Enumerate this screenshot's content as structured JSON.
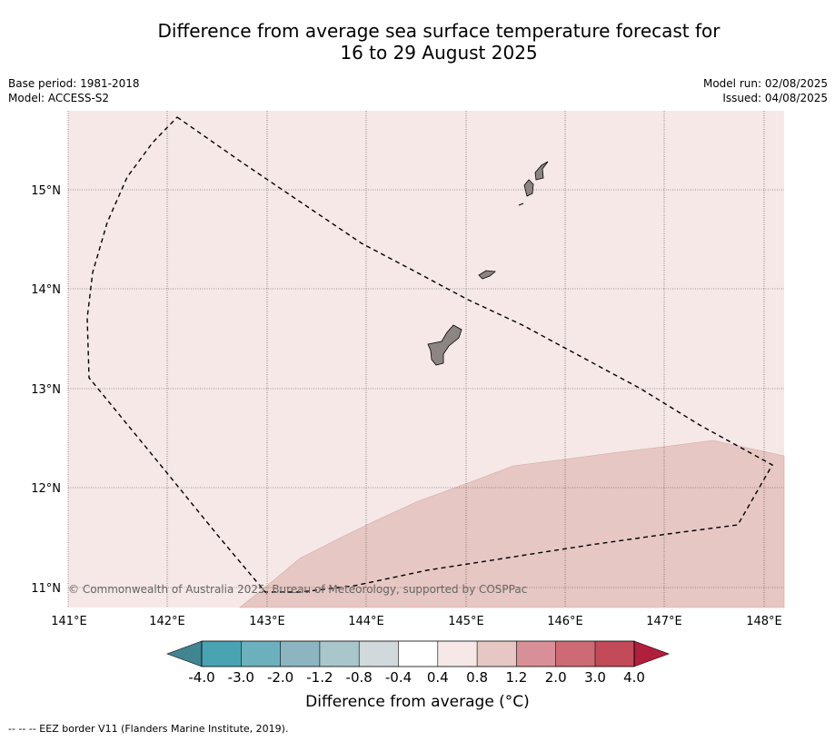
{
  "title": {
    "line1": "Difference from average sea surface temperature forecast for",
    "line2": "16 to 29 August 2025"
  },
  "meta": {
    "base_period": "Base period: 1981-2018",
    "model": "Model: ACCESS-S2",
    "model_run": "Model run: 02/08/2025",
    "issued": "Issued: 04/08/2025"
  },
  "map": {
    "lat_ticks": [
      "15°N",
      "14°N",
      "13°N",
      "12°N",
      "11°N"
    ],
    "lon_ticks": [
      "141°E",
      "142°E",
      "143°E",
      "144°E",
      "145°E",
      "146°E",
      "147°E",
      "148°E"
    ],
    "copyright": "© Commonwealth of Australia 2025, Bureau of Meteorology, supported by COSPPac",
    "colors": {
      "background_anomaly": "#f5e8e7",
      "warm_anomaly": "#e6c7c3",
      "land": "#8c8582"
    }
  },
  "colorbar": {
    "ticks": [
      "-4.0",
      "-3.0",
      "-2.0",
      "-1.2",
      "-0.8",
      "-0.4",
      "0.4",
      "0.8",
      "1.2",
      "2.0",
      "3.0",
      "4.0"
    ],
    "colors": [
      "#418591",
      "#4aa3b3",
      "#6cafbd",
      "#8cb5c1",
      "#a9c6cb",
      "#d1d9dc",
      "#ffffff",
      "#f5e8e7",
      "#e6c7c3",
      "#d98f97",
      "#cd6a74",
      "#c24a59",
      "#b01f3c"
    ],
    "label": "Difference from average (°C)"
  },
  "footnote": "-- -- -- EEZ border V11 (Flanders Marine Institute, 2019)."
}
